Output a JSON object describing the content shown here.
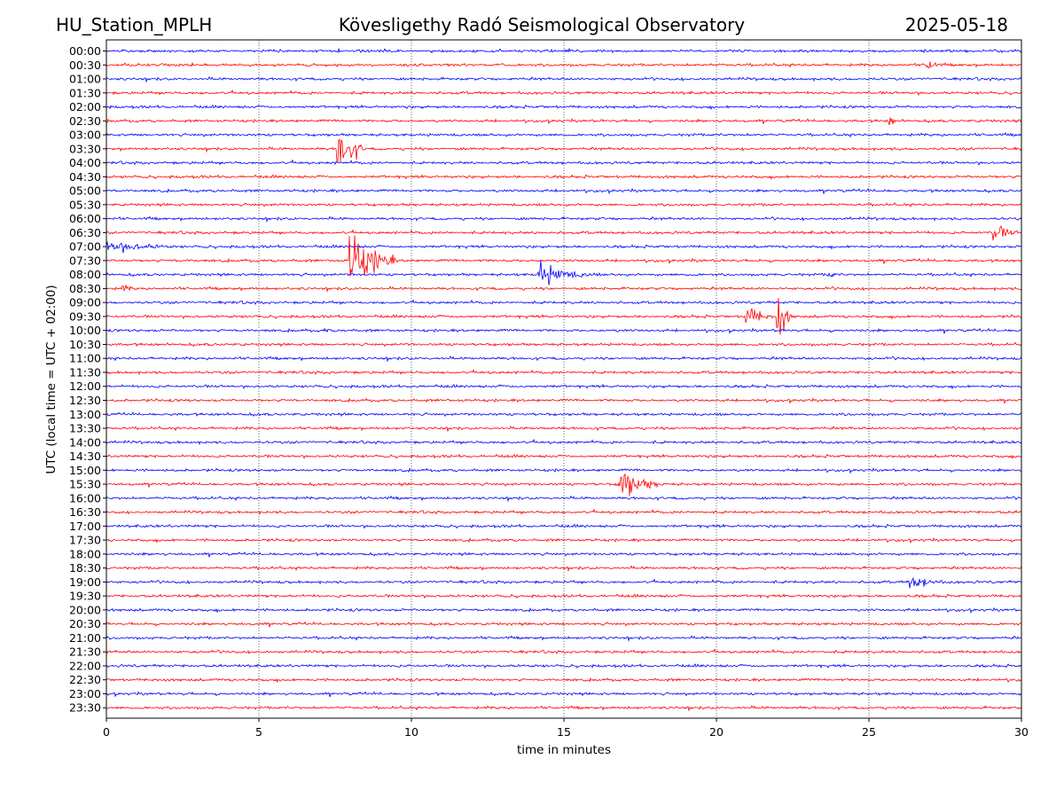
{
  "header": {
    "station": "HU_Station_MPLH",
    "observatory": "Kövesligethy Radó Seismological Observatory",
    "date": "2025-05-18"
  },
  "chart_data": {
    "type": "line",
    "title": "Kövesligethy Radó Seismological Observatory",
    "xlabel": "time in minutes",
    "ylabel": "UTC (local time = UTC + 02:00)",
    "xlim": [
      0,
      30
    ],
    "xticks": [
      "0",
      "5",
      "10",
      "15",
      "20",
      "25",
      "30"
    ],
    "grid": "vertical dotted at x ticks",
    "colors": {
      "even_hour": "#0000ff",
      "half_hour": "#ff0000"
    },
    "rows": [
      "00:00",
      "00:30",
      "01:00",
      "01:30",
      "02:00",
      "02:30",
      "03:00",
      "03:30",
      "04:00",
      "04:30",
      "05:00",
      "05:30",
      "06:00",
      "06:30",
      "07:00",
      "07:30",
      "08:00",
      "08:30",
      "09:00",
      "09:30",
      "10:00",
      "10:30",
      "11:00",
      "11:30",
      "12:00",
      "12:30",
      "13:00",
      "13:30",
      "14:00",
      "14:30",
      "15:00",
      "15:30",
      "16:00",
      "16:30",
      "17:00",
      "17:30",
      "18:00",
      "18:30",
      "19:00",
      "19:30",
      "20:00",
      "20:30",
      "21:00",
      "21:30",
      "22:00",
      "22:30",
      "23:00",
      "23:30"
    ],
    "events": [
      {
        "row": "00:30",
        "minute": 26.9,
        "duration": 0.5,
        "amplitude": 12
      },
      {
        "row": "02:30",
        "minute": 25.7,
        "duration": 0.35,
        "amplitude": 7
      },
      {
        "row": "03:30",
        "minute": 7.6,
        "duration": 0.9,
        "amplitude": 30
      },
      {
        "row": "06:30",
        "minute": 29.1,
        "duration": 0.9,
        "amplitude": 12
      },
      {
        "row": "07:00",
        "minute": 0.0,
        "duration": 3.2,
        "amplitude": 7
      },
      {
        "row": "07:30",
        "minute": 8.0,
        "duration": 1.5,
        "amplitude": 38
      },
      {
        "row": "08:00",
        "minute": 14.2,
        "duration": 2.0,
        "amplitude": 14
      },
      {
        "row": "08:00",
        "minute": 23.7,
        "duration": 0.8,
        "amplitude": 4
      },
      {
        "row": "08:30",
        "minute": 0.5,
        "duration": 1.0,
        "amplitude": 4
      },
      {
        "row": "09:30",
        "minute": 21.0,
        "duration": 0.9,
        "amplitude": 14
      },
      {
        "row": "09:30",
        "minute": 22.0,
        "duration": 0.5,
        "amplitude": 30
      },
      {
        "row": "10:00",
        "minute": 7.2,
        "duration": 0.6,
        "amplitude": 3
      },
      {
        "row": "15:30",
        "minute": 16.8,
        "duration": 1.5,
        "amplitude": 20
      },
      {
        "row": "19:00",
        "minute": 26.3,
        "duration": 1.5,
        "amplitude": 9
      }
    ]
  }
}
